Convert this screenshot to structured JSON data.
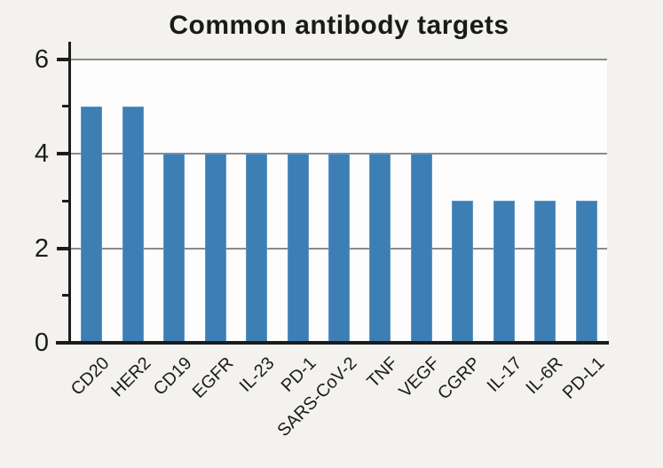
{
  "title": "Common antibody targets",
  "chart_data": {
    "type": "bar",
    "title": "Common antibody targets",
    "categories": [
      "CD20",
      "HER2",
      "CD19",
      "EGFR",
      "IL-23",
      "PD-1",
      "SARS-CoV-2",
      "TNF",
      "VEGF",
      "CGRP",
      "IL-17",
      "IL-6R",
      "PD-L1"
    ],
    "values": [
      5,
      5,
      4,
      4,
      4,
      4,
      4,
      4,
      4,
      3,
      3,
      3,
      3
    ],
    "xlabel": "",
    "ylabel": "",
    "ylim": [
      0,
      6
    ],
    "ytick_labels": [
      "0",
      "2",
      "4",
      "6"
    ],
    "yticks": [
      0,
      2,
      4,
      6
    ],
    "minor_yticks": [
      1,
      3,
      5
    ],
    "gridlines": [
      2,
      4,
      6
    ],
    "legend_position": "none",
    "grid_on": true,
    "bar_color": "#3d7fb5",
    "grid_color": "#8a8a8a",
    "axis_color": "#1c1c1c",
    "background_color": "#f3f2ee",
    "plot_background_color": "#fdfdfd"
  }
}
